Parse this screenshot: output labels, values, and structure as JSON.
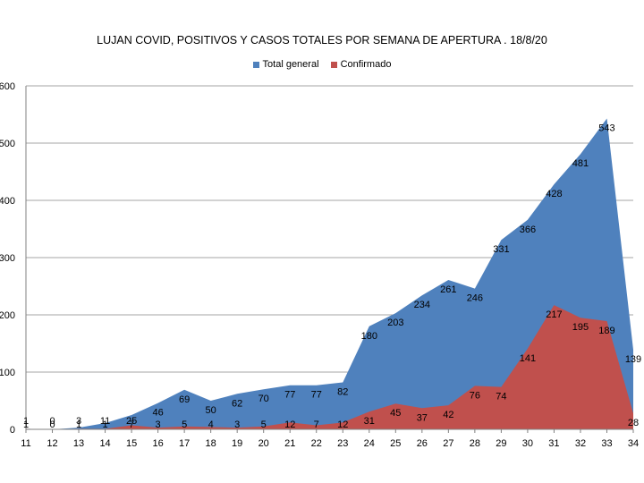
{
  "chart_data": {
    "type": "area",
    "title": "LUJAN COVID,  POSITIVOS Y CASOS TOTALES POR SEMANA DE APERTURA . 18/8/20",
    "xlabel": "",
    "ylabel": "",
    "x": [
      "11",
      "12",
      "13",
      "14",
      "15",
      "16",
      "17",
      "18",
      "19",
      "20",
      "21",
      "22",
      "23",
      "24",
      "25",
      "26",
      "27",
      "28",
      "29",
      "30",
      "31",
      "32",
      "33",
      "34"
    ],
    "series": [
      {
        "name": "Total general",
        "color": "#4f81bd",
        "values": [
          1,
          0,
          3,
          11,
          25,
          46,
          69,
          50,
          62,
          70,
          77,
          77,
          82,
          180,
          203,
          234,
          261,
          246,
          331,
          366,
          428,
          481,
          543,
          139
        ]
      },
      {
        "name": "Confirmado",
        "color": "#c0504d",
        "values": [
          1,
          0,
          1,
          1,
          7,
          3,
          5,
          4,
          3,
          5,
          12,
          7,
          12,
          31,
          45,
          37,
          42,
          76,
          74,
          141,
          217,
          195,
          189,
          28
        ]
      }
    ],
    "yticks": [
      "0",
      "100",
      "200",
      "300",
      "400",
      "500",
      "600"
    ],
    "ylim": [
      0,
      600
    ],
    "grid": true,
    "legend": "top"
  }
}
